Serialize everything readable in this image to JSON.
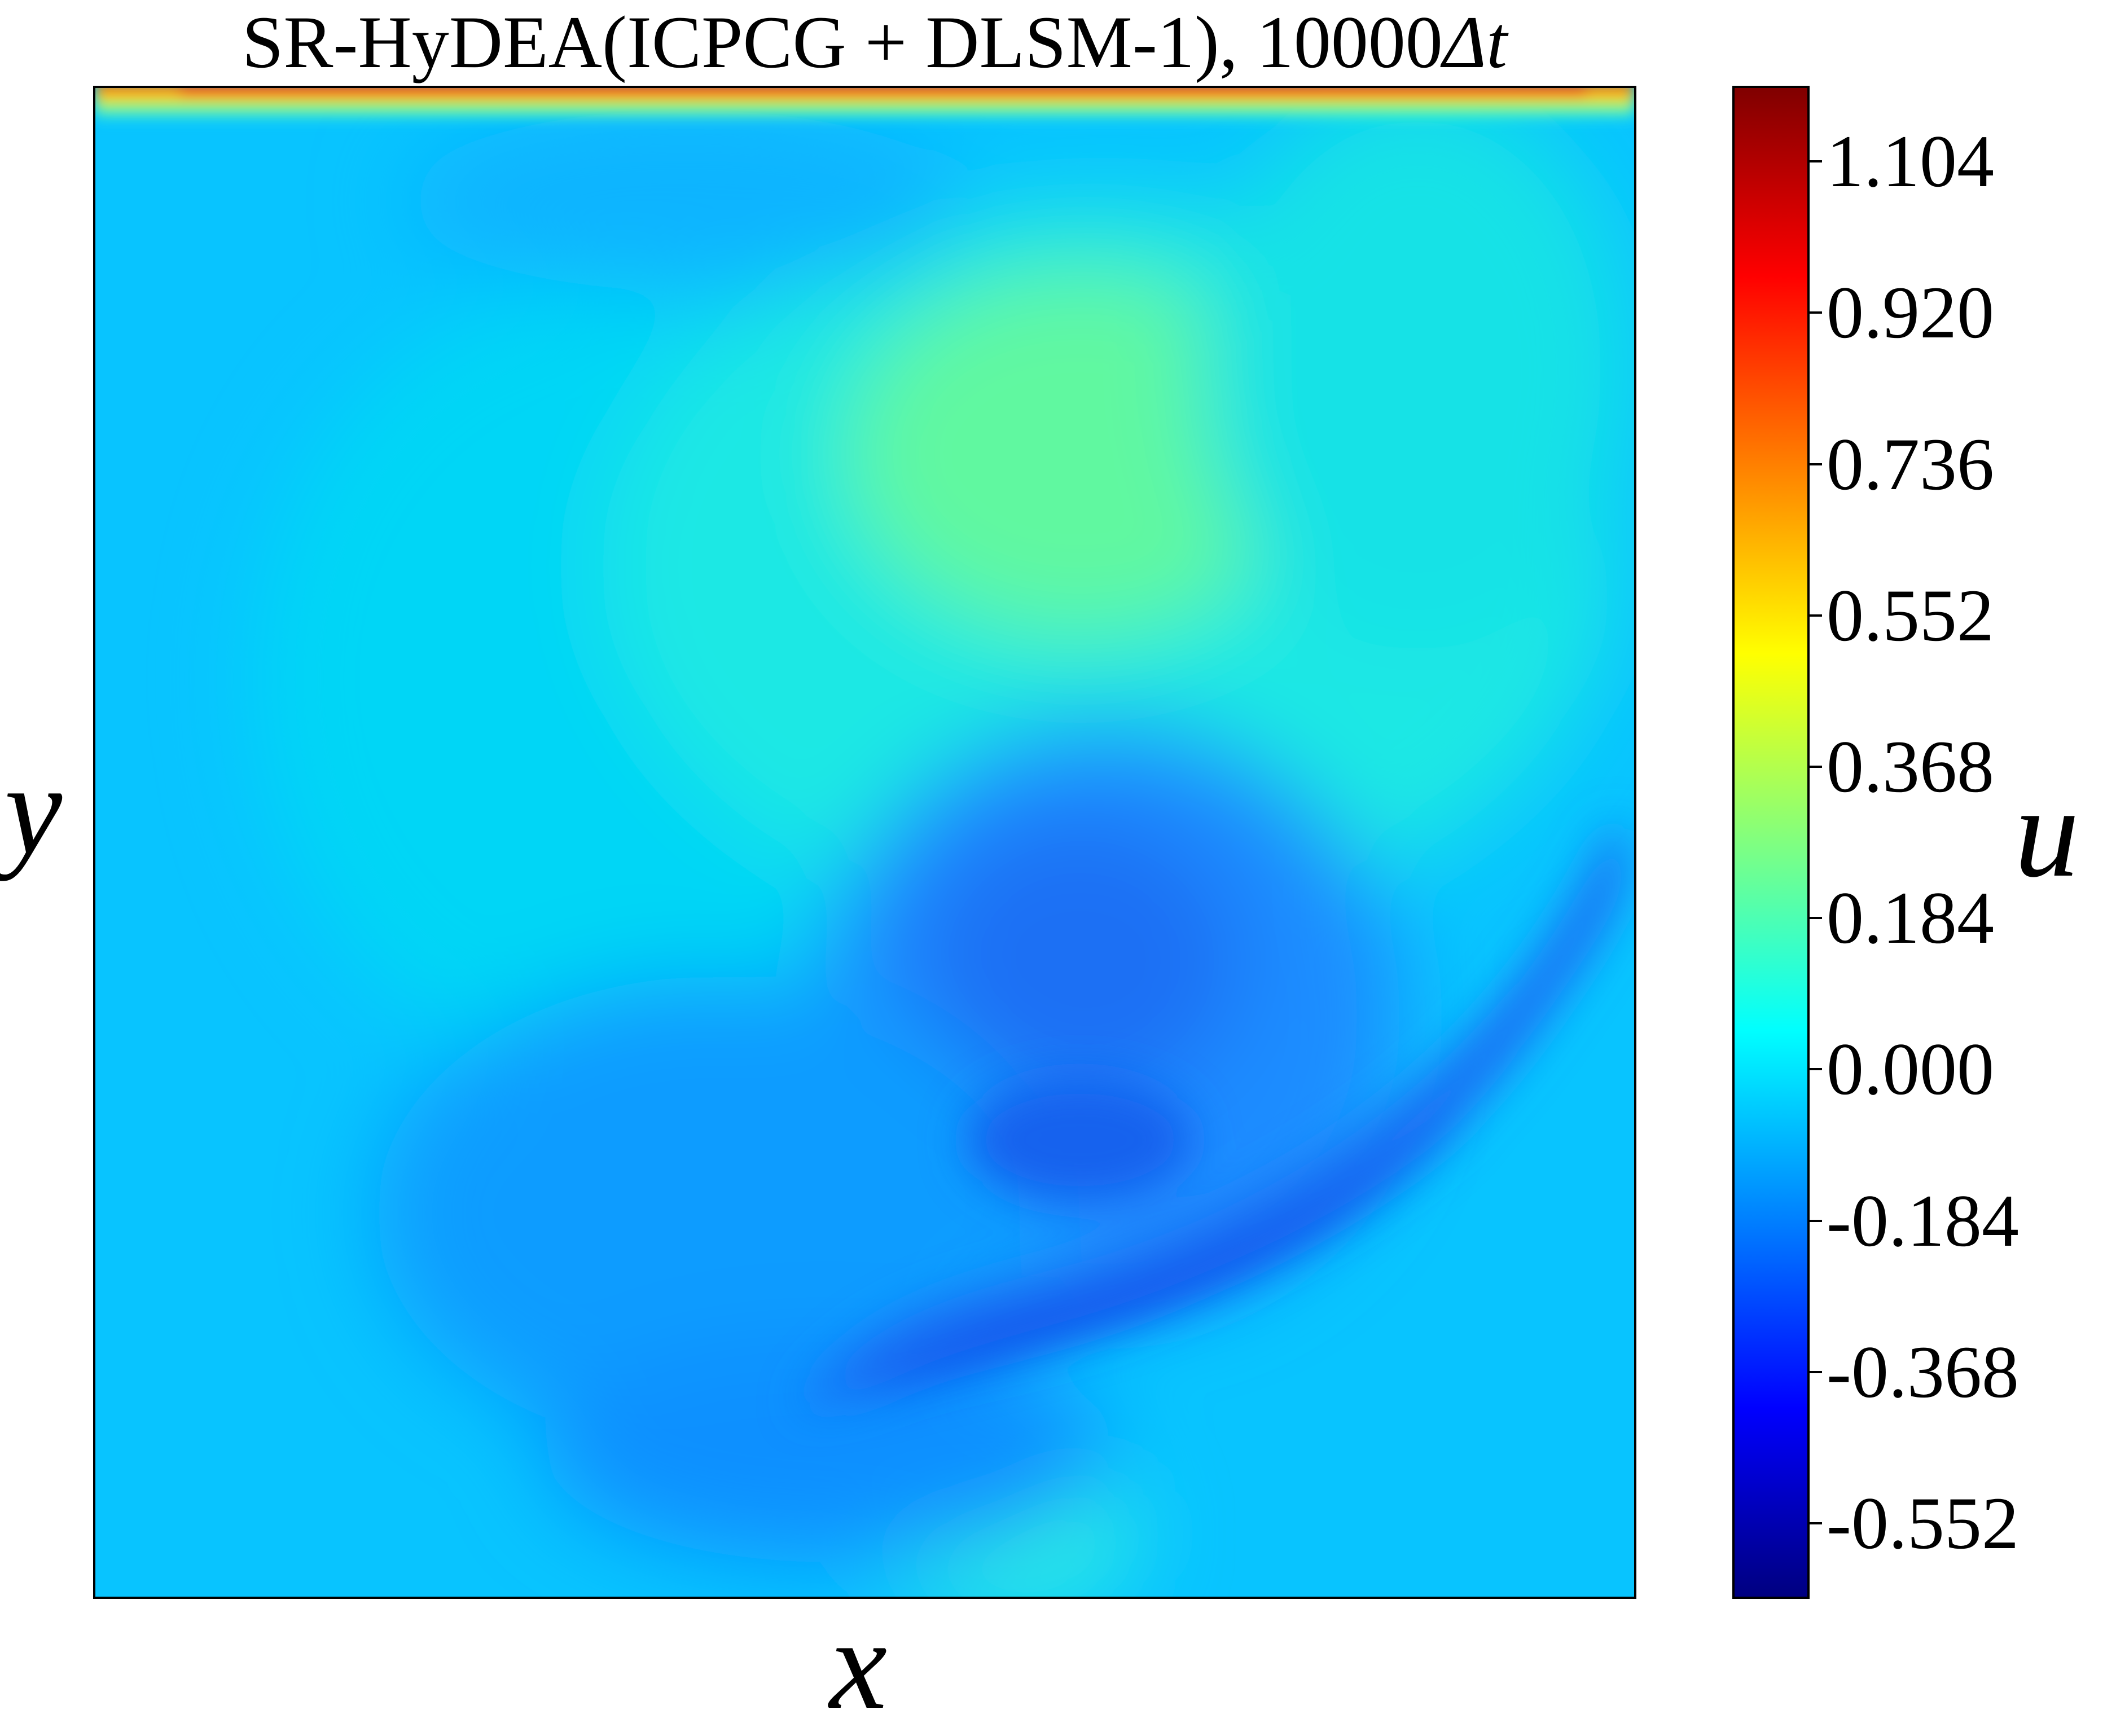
{
  "chart_data": {
    "type": "heatmap",
    "title": "SR-HyDEA(ICPCG + DLSM-1), 10000",
    "title_italic_suffix": "Δt",
    "xlabel": "x",
    "ylabel": "y",
    "colorbar": {
      "label": "u",
      "colormap": "jet",
      "range": [
        -0.644,
        1.196
      ],
      "ticks": [
        -0.552,
        -0.368,
        -0.184,
        0.0,
        0.184,
        0.368,
        0.552,
        0.736,
        0.92,
        1.104
      ],
      "tick_labels": [
        "-0.552",
        "-0.368",
        "-0.184",
        "0.000",
        "0.184",
        "0.368",
        "0.552",
        "0.736",
        "0.920",
        "1.104"
      ]
    },
    "axes_ticks_visible": false,
    "field_description_values": {
      "background_level": -0.02,
      "upper_center_max": 0.3,
      "lower_arc_min": -0.3,
      "lid_top_edge": 1.0
    }
  },
  "colors": {
    "background": "#ffffff",
    "axis": "#000000"
  }
}
